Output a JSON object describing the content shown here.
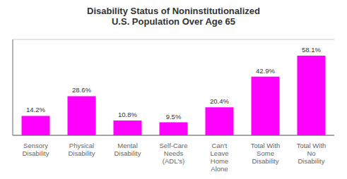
{
  "chart_data": {
    "type": "bar",
    "title": "Disability Status of Noninstitutionalized\nU.S. Population Over Age 65",
    "categories": [
      "Sensory\nDisability",
      "Physical\nDisability",
      "Mental\nDisability",
      "Self-Care\nNeeds\n(ADL's)",
      "Can't\nLeave\nHome\nAlone",
      "Total With\nSome\nDisability",
      "Total With\nNo\nDisability"
    ],
    "values": [
      14.2,
      28.6,
      10.8,
      9.5,
      20.4,
      42.9,
      58.1
    ],
    "value_labels": [
      "14.2%",
      "28.6%",
      "10.8%",
      "9.5%",
      "20.4%",
      "42.9%",
      "58.1%"
    ],
    "color": "#FF00FF",
    "ylim": [
      0,
      70
    ],
    "yticks": [
      0,
      10,
      20,
      30,
      40,
      50,
      60,
      70
    ],
    "grid": true,
    "data_labels": true,
    "tick_labels": "x"
  }
}
